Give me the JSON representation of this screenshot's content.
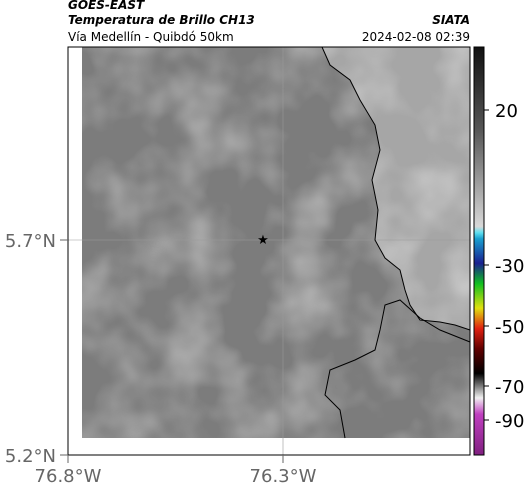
{
  "header": {
    "source": "GOES-EAST",
    "title": "Temperatura de Brillo CH13",
    "brand": "SIATA",
    "region": "Vía Medellín - Quibdó 50km",
    "timestamp": "2024-02-08 02:39"
  },
  "map": {
    "lat_labels": [
      "5.7°N",
      "5.2°N"
    ],
    "lon_labels": [
      "76.8°W",
      "76.3°W"
    ]
  },
  "colorbar": {
    "labels": [
      "20",
      "-30",
      "-50",
      "-70",
      "-90"
    ]
  }
}
